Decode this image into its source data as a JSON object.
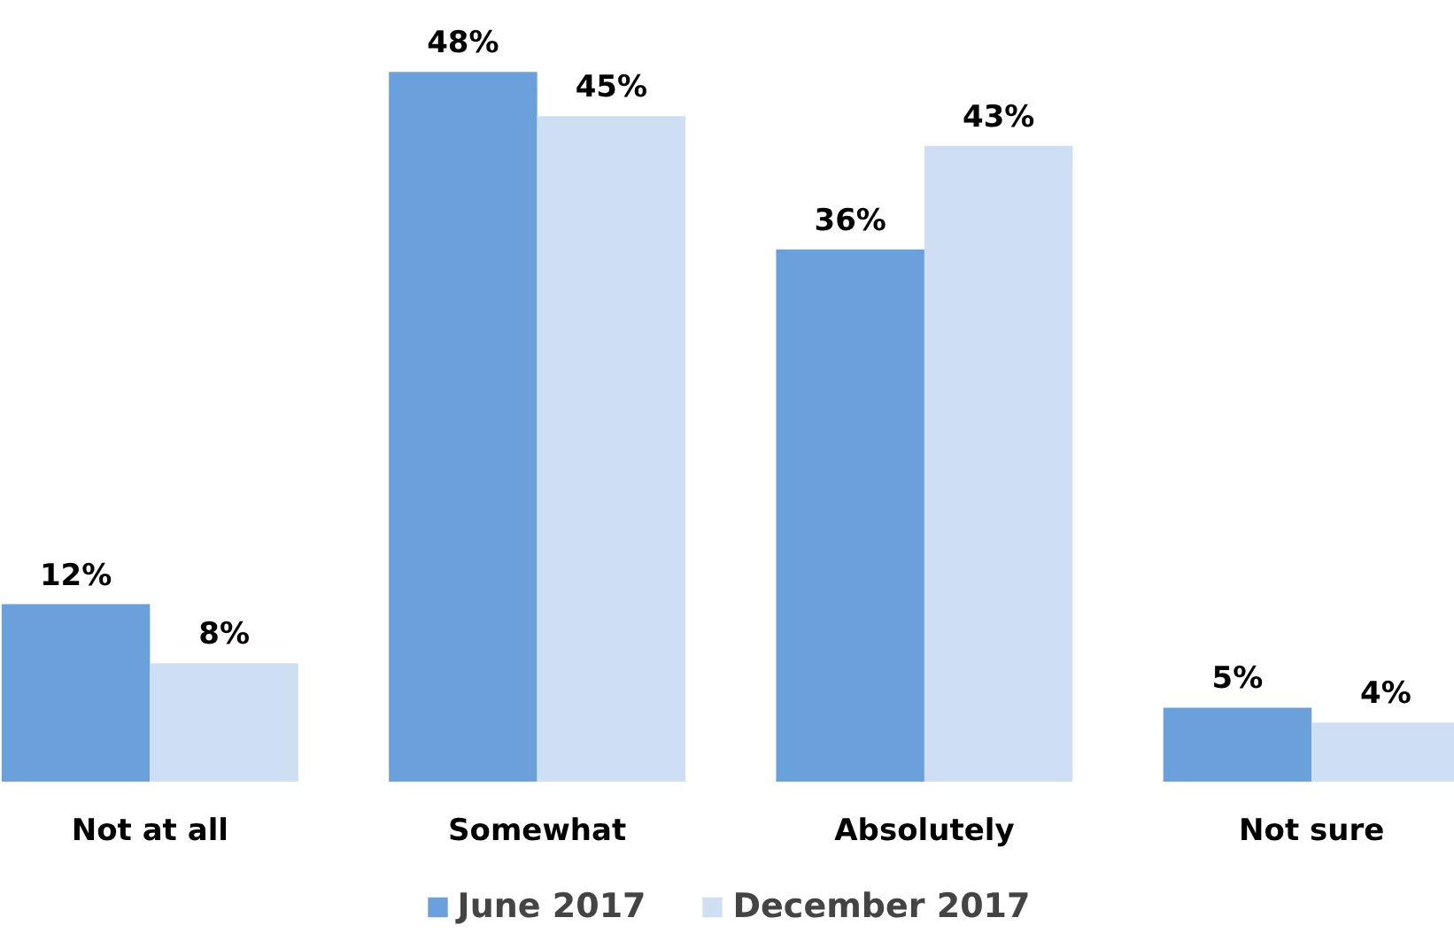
{
  "chart_data": {
    "type": "bar",
    "categories": [
      "Not at all",
      "Somewhat",
      "Absolutely",
      "Not sure"
    ],
    "legend": "bottom",
    "series": [
      {
        "name": "June 2017",
        "color": "#6aa0dc",
        "values": [
          12,
          48,
          36,
          5
        ],
        "value_labels": [
          "12%",
          "48%",
          "36%",
          "5%"
        ]
      },
      {
        "name": "December 2017",
        "color": "#cfdff3",
        "values": [
          8,
          45,
          43,
          4
        ],
        "value_labels": [
          "8%",
          "45%",
          "43%",
          "4%"
        ]
      }
    ]
  }
}
